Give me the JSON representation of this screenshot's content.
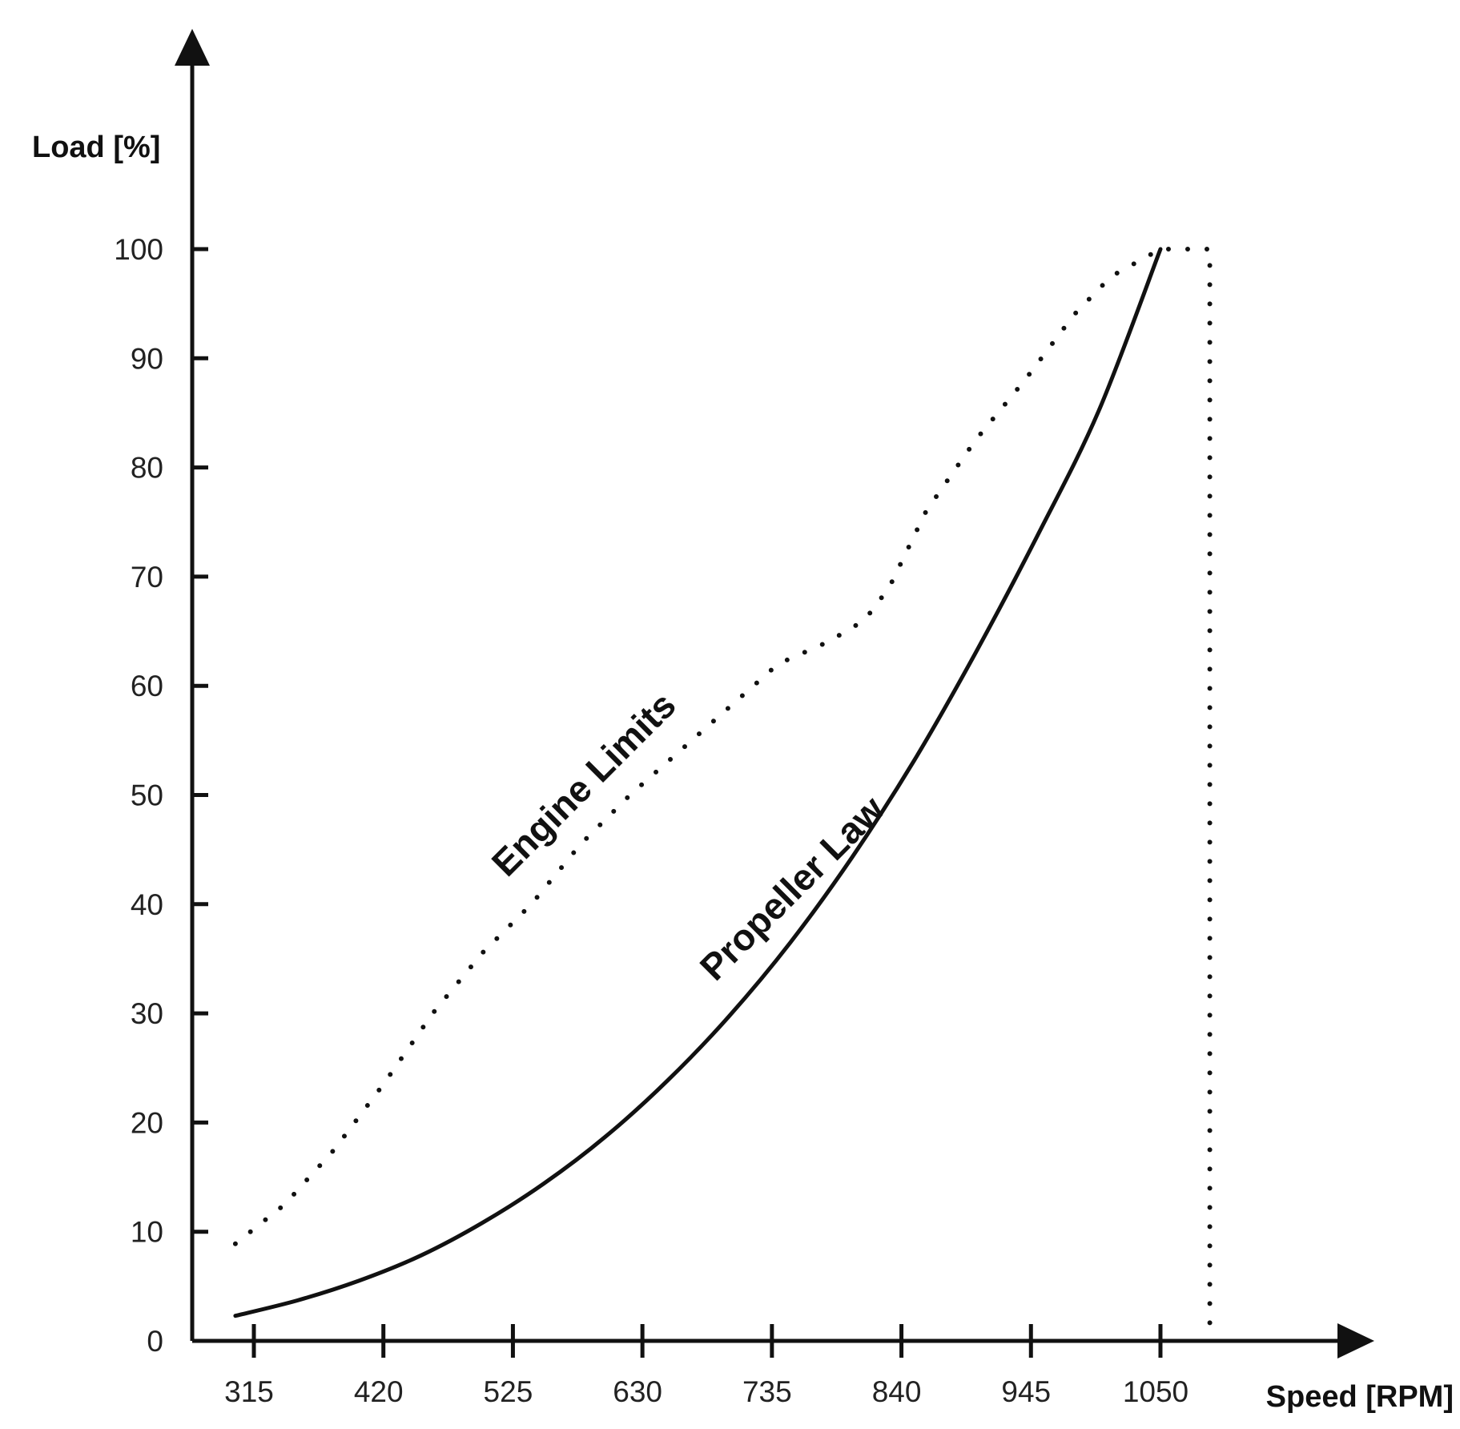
{
  "chart_data": {
    "type": "line",
    "title": "",
    "xlabel": "Speed [RPM]",
    "ylabel": "Load [%]",
    "x_ticks": [
      315,
      420,
      525,
      630,
      735,
      840,
      945,
      1050
    ],
    "y_ticks": [
      0,
      10,
      20,
      30,
      40,
      50,
      60,
      70,
      80,
      90,
      100
    ],
    "xlim": [
      265,
      1200
    ],
    "ylim": [
      0,
      100
    ],
    "grid": false,
    "legend": "none",
    "series": [
      {
        "name": "Engine Limits",
        "style": "dotted",
        "color": "#111111",
        "x": [
          300,
          340,
          380,
          420,
          460,
          500,
          540,
          580,
          620,
          660,
          700,
          740,
          780,
          810,
          830,
          860,
          900,
          940,
          980,
          1010,
          1050,
          1090,
          1090
        ],
        "y": [
          8.9,
          12.5,
          17.5,
          23.5,
          30.0,
          35.5,
          40.0,
          45.5,
          50.0,
          54.0,
          58.0,
          62.0,
          64.0,
          66.0,
          69.0,
          76.0,
          82.5,
          88.0,
          94.0,
          97.5,
          100,
          100,
          0
        ]
      },
      {
        "name": "Propeller Law",
        "style": "solid",
        "color": "#111111",
        "x": [
          300,
          350,
          400,
          450,
          500,
          550,
          600,
          650,
          700,
          750,
          800,
          850,
          900,
          950,
          1000,
          1050
        ],
        "y": [
          2.3,
          3.7,
          5.5,
          7.8,
          10.8,
          14.4,
          18.7,
          23.8,
          29.7,
          36.5,
          44.3,
          53.1,
          63.0,
          73.7,
          85.2,
          100
        ]
      }
    ]
  }
}
